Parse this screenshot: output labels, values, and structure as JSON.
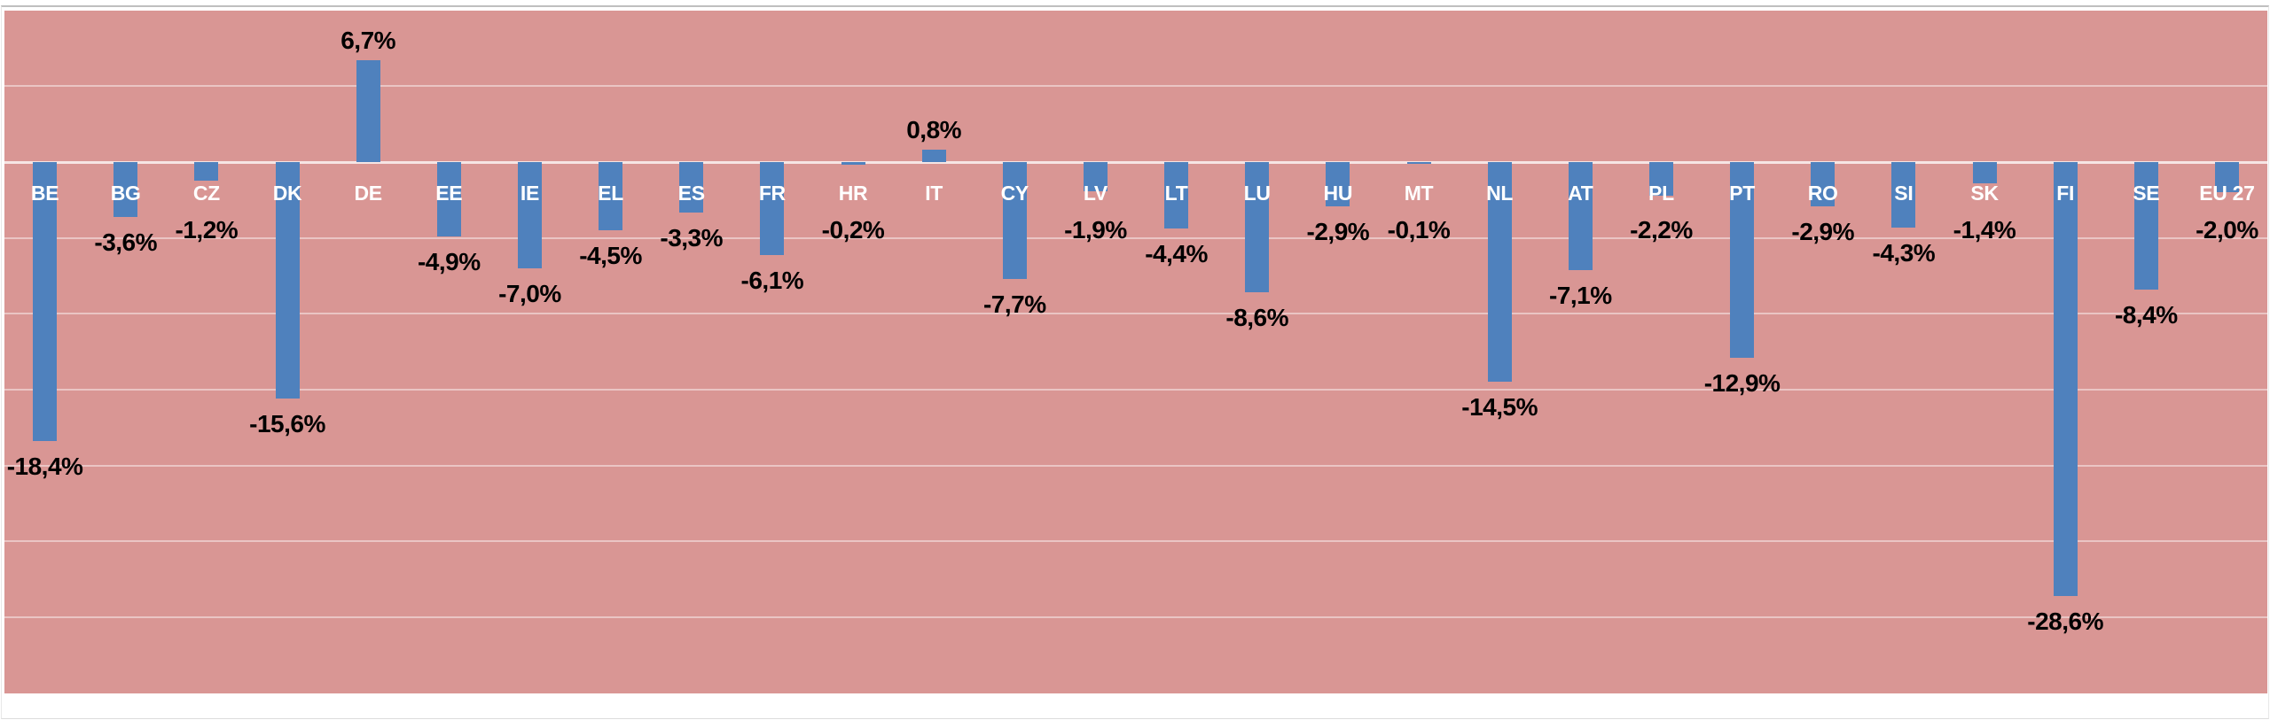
{
  "chart_data": {
    "type": "bar",
    "title": "",
    "categories": [
      "BE",
      "BG",
      "CZ",
      "DK",
      "DE",
      "EE",
      "IE",
      "EL",
      "ES",
      "FR",
      "HR",
      "IT",
      "CY",
      "LV",
      "LT",
      "LU",
      "HU",
      "MT",
      "NL",
      "AT",
      "PL",
      "PT",
      "RO",
      "SI",
      "SK",
      "FI",
      "SE",
      "EU 27"
    ],
    "values": [
      -18.4,
      -3.6,
      -1.2,
      -15.6,
      6.7,
      -4.9,
      -7.0,
      -4.5,
      -3.3,
      -6.1,
      -0.2,
      0.8,
      -7.7,
      -1.9,
      -4.4,
      -8.6,
      -2.9,
      -0.1,
      -14.5,
      -7.1,
      -2.2,
      -12.9,
      -2.9,
      -4.3,
      -1.4,
      -28.6,
      -8.4,
      -2.0
    ],
    "value_labels": [
      "-18,4%",
      "-3,6%",
      "-1,2%",
      "-15,6%",
      "6,7%",
      "-4,9%",
      "-7,0%",
      "-4,5%",
      "-3,3%",
      "-6,1%",
      "-0,2%",
      "0,8%",
      "-7,7%",
      "-1,9%",
      "-4,4%",
      "-8,6%",
      "-2,9%",
      "-0,1%",
      "-14,5%",
      "-7,1%",
      "-2,2%",
      "-12,9%",
      "-2,9%",
      "-4,3%",
      "-1,4%",
      "-28,6%",
      "-8,4%",
      "-2,0%"
    ],
    "xlabel": "",
    "ylabel": "",
    "ylim": [
      -35,
      10
    ],
    "gridline_step": 5,
    "grid": "horizontal",
    "legend_position": "none",
    "category_labels_position": "below-zero-axis",
    "value_label_decimal_separator": "comma",
    "colors": {
      "page_background": "#FFFFFF",
      "plot_background": "#D99694",
      "bar": "#4F81BD",
      "gridline": "rgba(255,255,255,0.45)",
      "zero_line": "rgba(255,255,255,0.75)",
      "category_label": "#FFFFFF",
      "value_label": "#000000",
      "frame_border": "#BFBFBF"
    }
  }
}
